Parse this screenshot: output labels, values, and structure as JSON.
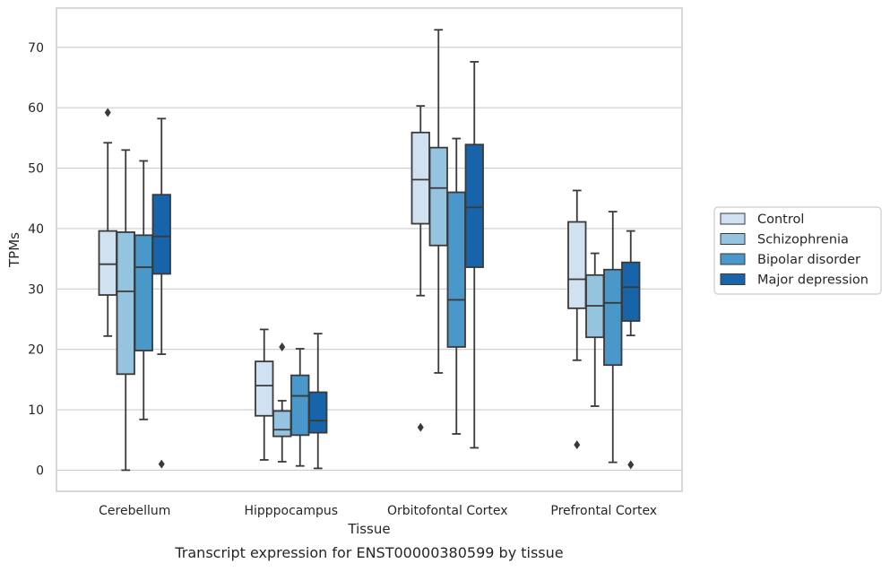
{
  "caption": "Transcript expression for ENST00000380599 by tissue",
  "chart_data": {
    "type": "box",
    "xlabel": "Tissue",
    "ylabel": "TPMs",
    "ylim": [
      -3.5,
      76.5
    ],
    "yticks": [
      0,
      10,
      20,
      30,
      40,
      50,
      60,
      70
    ],
    "grid": "horizontal",
    "legend_position": "right",
    "categories": [
      "Cerebellum",
      "Hipppocampus",
      "Orbitofontal Cortex",
      "Prefrontal Cortex"
    ],
    "series": [
      {
        "name": "Control",
        "color": "#d0e1f2",
        "boxes": [
          {
            "whislo": 22.2,
            "q1": 29.0,
            "med": 34.1,
            "q3": 39.6,
            "whishi": 54.2,
            "fliers": [
              59.2
            ]
          },
          {
            "whislo": 1.7,
            "q1": 9.0,
            "med": 14.0,
            "q3": 18.0,
            "whishi": 23.3,
            "fliers": []
          },
          {
            "whislo": 28.9,
            "q1": 40.8,
            "med": 48.1,
            "q3": 55.9,
            "whishi": 60.3,
            "fliers": [
              7.1
            ]
          },
          {
            "whislo": 18.2,
            "q1": 26.8,
            "med": 31.6,
            "q3": 41.1,
            "whishi": 46.3,
            "fliers": [
              4.2
            ]
          }
        ]
      },
      {
        "name": "Schizophrenia",
        "color": "#94c4df",
        "boxes": [
          {
            "whislo": 0.0,
            "q1": 15.9,
            "med": 29.6,
            "q3": 39.4,
            "whishi": 53.0,
            "fliers": []
          },
          {
            "whislo": 1.4,
            "q1": 5.6,
            "med": 6.7,
            "q3": 9.8,
            "whishi": 11.5,
            "fliers": [
              20.4
            ]
          },
          {
            "whislo": 16.1,
            "q1": 37.2,
            "med": 46.7,
            "q3": 53.4,
            "whishi": 72.9,
            "fliers": []
          },
          {
            "whislo": 10.6,
            "q1": 22.0,
            "med": 27.2,
            "q3": 32.3,
            "whishi": 35.9,
            "fliers": []
          }
        ]
      },
      {
        "name": "Bipolar disorder",
        "color": "#4a98c9",
        "boxes": [
          {
            "whislo": 8.4,
            "q1": 19.8,
            "med": 33.6,
            "q3": 38.9,
            "whishi": 51.2,
            "fliers": []
          },
          {
            "whislo": 0.7,
            "q1": 5.8,
            "med": 12.3,
            "q3": 15.7,
            "whishi": 20.1,
            "fliers": []
          },
          {
            "whislo": 6.0,
            "q1": 20.4,
            "med": 28.2,
            "q3": 46.0,
            "whishi": 54.9,
            "fliers": []
          },
          {
            "whislo": 1.3,
            "q1": 17.4,
            "med": 27.7,
            "q3": 33.2,
            "whishi": 42.8,
            "fliers": []
          }
        ]
      },
      {
        "name": "Major depression",
        "color": "#1764ab",
        "boxes": [
          {
            "whislo": 19.2,
            "q1": 32.5,
            "med": 38.7,
            "q3": 45.6,
            "whishi": 58.2,
            "fliers": [
              1.0
            ]
          },
          {
            "whislo": 0.3,
            "q1": 6.2,
            "med": 8.2,
            "q3": 12.9,
            "whishi": 22.6,
            "fliers": []
          },
          {
            "whislo": 3.7,
            "q1": 33.6,
            "med": 43.5,
            "q3": 53.9,
            "whishi": 67.6,
            "fliers": []
          },
          {
            "whislo": 22.3,
            "q1": 24.7,
            "med": 30.3,
            "q3": 34.4,
            "whishi": 39.6,
            "fliers": [
              0.9
            ]
          }
        ]
      }
    ]
  }
}
